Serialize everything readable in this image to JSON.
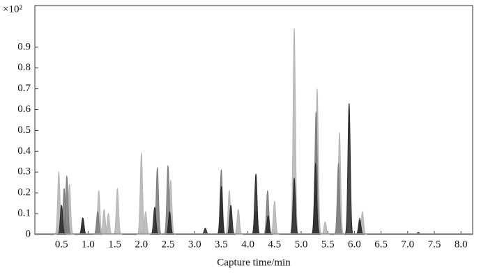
{
  "chart_data": {
    "type": "chromatogram",
    "y_multiplier": "×10²",
    "xlabel": "Capture time/min",
    "xlim": [
      0,
      8.22
    ],
    "ylim": [
      0,
      1.1
    ],
    "xticks": [
      0.5,
      {
        "value": 1,
        "label": "1.0"
      },
      1.5,
      {
        "value": 2,
        "label": "2.0"
      },
      2.5,
      {
        "value": 3,
        "label": "3.0"
      },
      3.5,
      {
        "value": 4,
        "label": "4.0"
      },
      4.5,
      {
        "value": 5,
        "label": "5.0"
      },
      5.5,
      {
        "value": 6,
        "label": "6.0"
      },
      6.5,
      {
        "value": 7,
        "label": "7.0"
      },
      7.5,
      {
        "value": 8,
        "label": "8.0"
      }
    ],
    "yticks": [
      0,
      0.1,
      0.2,
      0.3,
      0.4,
      0.5,
      0.6,
      0.7,
      0.8,
      0.9
    ],
    "series": [
      {
        "color": "#b4b4b4",
        "x": [
          0.45,
          0.65,
          1.2,
          1.3,
          1.38,
          1.55,
          2.0,
          2.08,
          2.55,
          3.65,
          3.82,
          4.5,
          4.87,
          5.3,
          5.45,
          5.72,
          6.15
        ],
        "values": [
          0.3,
          0.24,
          0.21,
          0.12,
          0.1,
          0.22,
          0.39,
          0.11,
          0.26,
          0.21,
          0.12,
          0.16,
          0.99,
          0.7,
          0.06,
          0.49,
          0.11
        ]
      },
      {
        "color": "#7a7a7a",
        "x": [
          0.55,
          0.6,
          0.9,
          1.18,
          2.3,
          2.5,
          3.5,
          4.15,
          4.37,
          5.28,
          5.7,
          6.1
        ],
        "values": [
          0.22,
          0.28,
          0.08,
          0.11,
          0.32,
          0.33,
          0.31,
          0.11,
          0.21,
          0.59,
          0.34,
          0.08
        ]
      },
      {
        "color": "#262626",
        "x": [
          0.5,
          0.9,
          2.25,
          2.53,
          3.2,
          3.5,
          3.68,
          4.15,
          4.38,
          4.87,
          5.27,
          5.9,
          6.1,
          7.2
        ],
        "values": [
          0.14,
          0.08,
          0.13,
          0.11,
          0.03,
          0.23,
          0.14,
          0.29,
          0.09,
          0.27,
          0.34,
          0.63,
          0.07,
          0.01
        ]
      }
    ]
  }
}
